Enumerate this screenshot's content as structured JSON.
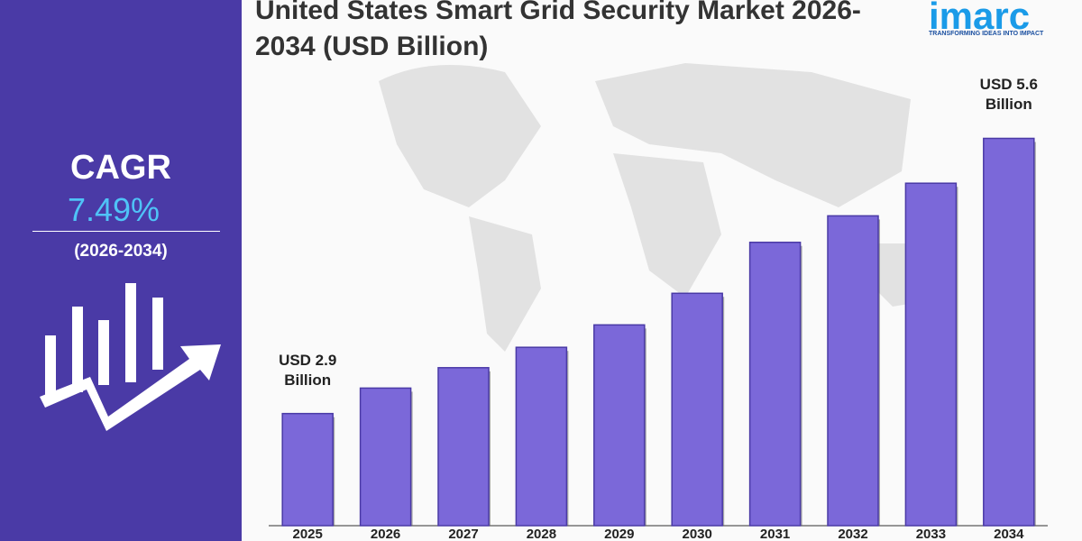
{
  "chart_data": {
    "type": "bar",
    "title": "United States Smart Grid Security Market 2026-2034 (USD Billion)",
    "categories": [
      "2025",
      "2026",
      "2027",
      "2028",
      "2029",
      "2030",
      "2031",
      "2032",
      "2033",
      "2034"
    ],
    "values": [
      2.9,
      3.15,
      3.35,
      3.55,
      3.77,
      4.08,
      4.58,
      4.84,
      5.16,
      5.6
    ],
    "value_labels": [
      "USD  2.9 Billion",
      null,
      null,
      null,
      null,
      null,
      null,
      null,
      null,
      "USD 5.6 Billion"
    ],
    "color": "#7b68d9",
    "ylim": [
      1.8,
      6.25
    ]
  },
  "cagr": {
    "label": "CAGR",
    "value": "7.49%",
    "period": "(2026-2034)"
  },
  "logo": {
    "name": "imarc",
    "tagline": "TRANSFORMING IDEAS INTO IMPACT"
  }
}
